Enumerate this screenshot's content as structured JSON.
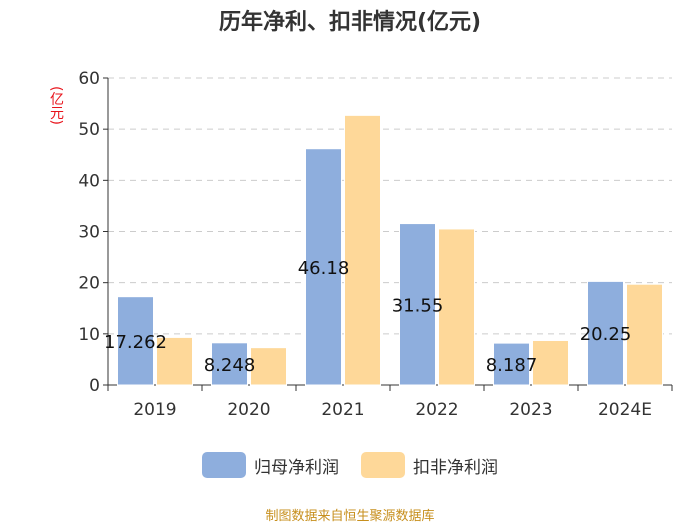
{
  "chart_data": {
    "type": "bar",
    "title": "历年净利、扣非情况(亿元)",
    "ylabel": "(亿元)",
    "xlabel": "",
    "ylim": [
      0,
      60
    ],
    "yticks": [
      0,
      10,
      20,
      30,
      40,
      50,
      60
    ],
    "grid": true,
    "legend_position": "bottom",
    "categories": [
      "2019",
      "2020",
      "2021",
      "2022",
      "2023",
      "2024E"
    ],
    "series": [
      {
        "name": "归母净利润",
        "color": "#8eaedd",
        "values": [
          17.262,
          8.248,
          46.18,
          31.55,
          8.187,
          20.25
        ],
        "labels": [
          "17.262",
          "8.248",
          "46.18",
          "31.55",
          "8.187",
          "20.25"
        ]
      },
      {
        "name": "扣非净利润",
        "color": "#fed899",
        "values": [
          9.3,
          7.3,
          52.7,
          30.5,
          8.7,
          19.7
        ]
      }
    ]
  },
  "source": "制图数据来自恒生聚源数据库"
}
